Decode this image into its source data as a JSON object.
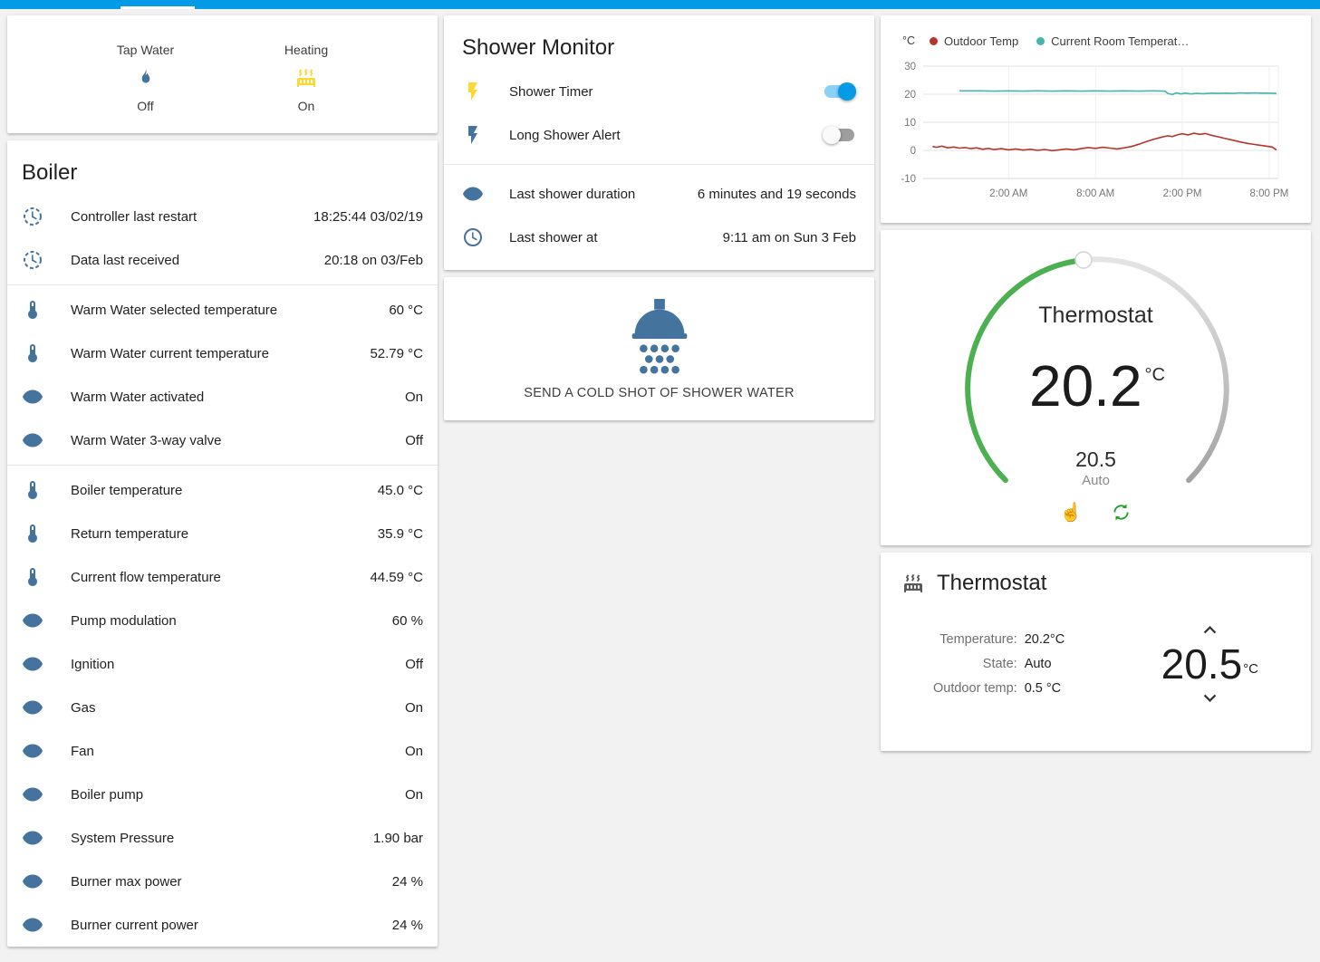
{
  "app": {
    "colors": {
      "app_bar": "#039be5",
      "toggle_on": "#039be5",
      "icon_default": "#44739e",
      "icon_active": "#fdd835",
      "dial_green": "#4caf50"
    }
  },
  "glance": {
    "items": [
      {
        "label": "Tap Water",
        "icon": "fire-icon",
        "state": "Off",
        "icon_color": "#44739e"
      },
      {
        "label": "Heating",
        "icon": "radiator-icon",
        "state": "On",
        "icon_color": "#fdd835"
      }
    ]
  },
  "boiler": {
    "title": "Boiler",
    "rows": [
      {
        "icon": "progress-clock-icon",
        "label": "Controller last restart",
        "value": "18:25:44 03/02/19"
      },
      {
        "icon": "progress-clock-icon",
        "label": "Data last received",
        "value": "20:18 on 03/Feb"
      },
      {
        "icon": "thermometer-icon",
        "label": "Warm Water selected temperature",
        "value": "60 °C"
      },
      {
        "icon": "thermometer-icon",
        "label": "Warm Water current temperature",
        "value": "52.79 °C"
      },
      {
        "icon": "eye-icon",
        "label": "Warm Water activated",
        "value": "On"
      },
      {
        "icon": "eye-icon",
        "label": "Warm Water 3-way valve",
        "value": "Off"
      },
      {
        "icon": "thermometer-icon",
        "label": "Boiler temperature",
        "value": "45.0 °C"
      },
      {
        "icon": "thermometer-icon",
        "label": "Return temperature",
        "value": "35.9 °C"
      },
      {
        "icon": "thermometer-icon",
        "label": "Current flow temperature",
        "value": "44.59 °C"
      },
      {
        "icon": "eye-icon",
        "label": "Pump modulation",
        "value": "60 %"
      },
      {
        "icon": "eye-icon",
        "label": "Ignition",
        "value": "Off"
      },
      {
        "icon": "eye-icon",
        "label": "Gas",
        "value": "On"
      },
      {
        "icon": "eye-icon",
        "label": "Fan",
        "value": "On"
      },
      {
        "icon": "eye-icon",
        "label": "Boiler pump",
        "value": "On"
      },
      {
        "icon": "eye-icon",
        "label": "System Pressure",
        "value": "1.90 bar"
      },
      {
        "icon": "eye-icon",
        "label": "Burner max power",
        "value": "24 %"
      },
      {
        "icon": "eye-icon",
        "label": "Burner current power",
        "value": "24 %"
      }
    ]
  },
  "shower_monitor": {
    "title": "Shower Monitor",
    "toggles": [
      {
        "icon": "flash-icon",
        "icon_color": "#fdd835",
        "label": "Shower Timer",
        "state": "on"
      },
      {
        "icon": "flash-icon",
        "icon_color": "#44739e",
        "label": "Long Shower Alert",
        "state": "off"
      }
    ],
    "stats": [
      {
        "icon": "eye-icon",
        "label": "Last shower duration",
        "value": "6 minutes and 19 seconds"
      },
      {
        "icon": "clock-icon",
        "label": "Last shower at",
        "value": "9:11 am on Sun 3 Feb"
      }
    ]
  },
  "cold_shot": {
    "icon": "shower-head-icon",
    "label": "SEND A COLD SHOT OF SHOWER WATER"
  },
  "chart_data": {
    "type": "line",
    "unit": "°C",
    "ylim": [
      -10,
      30
    ],
    "yticks": [
      30,
      20,
      10,
      0,
      -10
    ],
    "xticks": [
      {
        "label": "2:00 AM",
        "hour": 2
      },
      {
        "label": "8:00 AM",
        "hour": 8
      },
      {
        "label": "2:00 PM",
        "hour": 14
      },
      {
        "label": "8:00 PM",
        "hour": 20
      }
    ],
    "xrange_hours": [
      -3.9,
      20.63
    ],
    "grid": true,
    "legend_position": "top",
    "series": [
      {
        "name": "Outdoor Temp",
        "color": "#b5342d",
        "points": [
          [
            -3.25,
            1.4
          ],
          [
            -3,
            1.1
          ],
          [
            -2.6,
            1.5
          ],
          [
            -2.2,
            0.9
          ],
          [
            -1.8,
            1.2
          ],
          [
            -1.4,
            0.8
          ],
          [
            -1,
            1.0
          ],
          [
            -0.6,
            0.6
          ],
          [
            -0.2,
            0.9
          ],
          [
            0.2,
            0.4
          ],
          [
            0.6,
            0.7
          ],
          [
            1,
            0.3
          ],
          [
            1.5,
            0.6
          ],
          [
            2,
            0.2
          ],
          [
            2.5,
            0.5
          ],
          [
            3,
            0.1
          ],
          [
            3.5,
            0.4
          ],
          [
            4,
            0
          ],
          [
            4.5,
            0.3
          ],
          [
            5,
            -0.1
          ],
          [
            5.5,
            0.2
          ],
          [
            6,
            0.5
          ],
          [
            6.5,
            0.2
          ],
          [
            7,
            0.6
          ],
          [
            7.5,
            1.0
          ],
          [
            8,
            0.7
          ],
          [
            8.5,
            1.1
          ],
          [
            9,
            0.8
          ],
          [
            9.5,
            0.5
          ],
          [
            10,
            0.9
          ],
          [
            10.5,
            1.4
          ],
          [
            11,
            2.2
          ],
          [
            11.5,
            3.1
          ],
          [
            12,
            3.9
          ],
          [
            12.5,
            4.6
          ],
          [
            13,
            5.2
          ],
          [
            13.3,
            4.9
          ],
          [
            13.7,
            5.6
          ],
          [
            14,
            5.9
          ],
          [
            14.4,
            5.5
          ],
          [
            14.8,
            6.1
          ],
          [
            15.2,
            5.7
          ],
          [
            15.6,
            6.0
          ],
          [
            16,
            5.4
          ],
          [
            16.5,
            4.8
          ],
          [
            17,
            4.2
          ],
          [
            17.5,
            3.6
          ],
          [
            18,
            3.0
          ],
          [
            18.5,
            2.5
          ],
          [
            19,
            2.1
          ],
          [
            19.4,
            1.8
          ],
          [
            19.8,
            1.5
          ],
          [
            20.2,
            1.2
          ],
          [
            20.5,
            0.2
          ]
        ]
      },
      {
        "name": "Current Room Temperat…",
        "color": "#45b6ae",
        "points": [
          [
            -1.4,
            21.2
          ],
          [
            0,
            21.2
          ],
          [
            1,
            21.1
          ],
          [
            2,
            21.2
          ],
          [
            3,
            21.1
          ],
          [
            4,
            21.2
          ],
          [
            5,
            21.1
          ],
          [
            6,
            21.2
          ],
          [
            7,
            21.1
          ],
          [
            8,
            21.2
          ],
          [
            9,
            21.1
          ],
          [
            10,
            21.2
          ],
          [
            11,
            21.1
          ],
          [
            12,
            21.2
          ],
          [
            12.8,
            21.1
          ],
          [
            13,
            20.3
          ],
          [
            13.3,
            19.9
          ],
          [
            13.6,
            20.5
          ],
          [
            13.9,
            20.1
          ],
          [
            14.2,
            20.4
          ],
          [
            14.6,
            20.1
          ],
          [
            15,
            20.3
          ],
          [
            15.5,
            20.2
          ],
          [
            16,
            20.4
          ],
          [
            16.5,
            20.3
          ],
          [
            17,
            20.4
          ],
          [
            17.5,
            20.3
          ],
          [
            18,
            20.5
          ],
          [
            18.5,
            20.4
          ],
          [
            19,
            20.5
          ],
          [
            19.5,
            20.4
          ],
          [
            20,
            20.4
          ],
          [
            20.5,
            20.3
          ]
        ]
      }
    ]
  },
  "thermostat_dial": {
    "title": "Thermostat",
    "current_temp": "20.2",
    "unit": "°C",
    "target_temp": "20.5",
    "mode": "Auto",
    "arc_color": "#4caf50",
    "icons": [
      {
        "name": "hand-pointer-icon",
        "glyph": "☝"
      },
      {
        "name": "autorenew-icon",
        "color": "#21a02c"
      }
    ]
  },
  "thermostat_info": {
    "title": "Thermostat",
    "icon": "radiator-icon",
    "fields": [
      {
        "label": "Temperature:",
        "value": "20.2°C"
      },
      {
        "label": "State:",
        "value": "Auto"
      },
      {
        "label": "Outdoor temp:",
        "value": "0.5 °C"
      }
    ],
    "setpoint": "20.5",
    "unit": "°C"
  }
}
